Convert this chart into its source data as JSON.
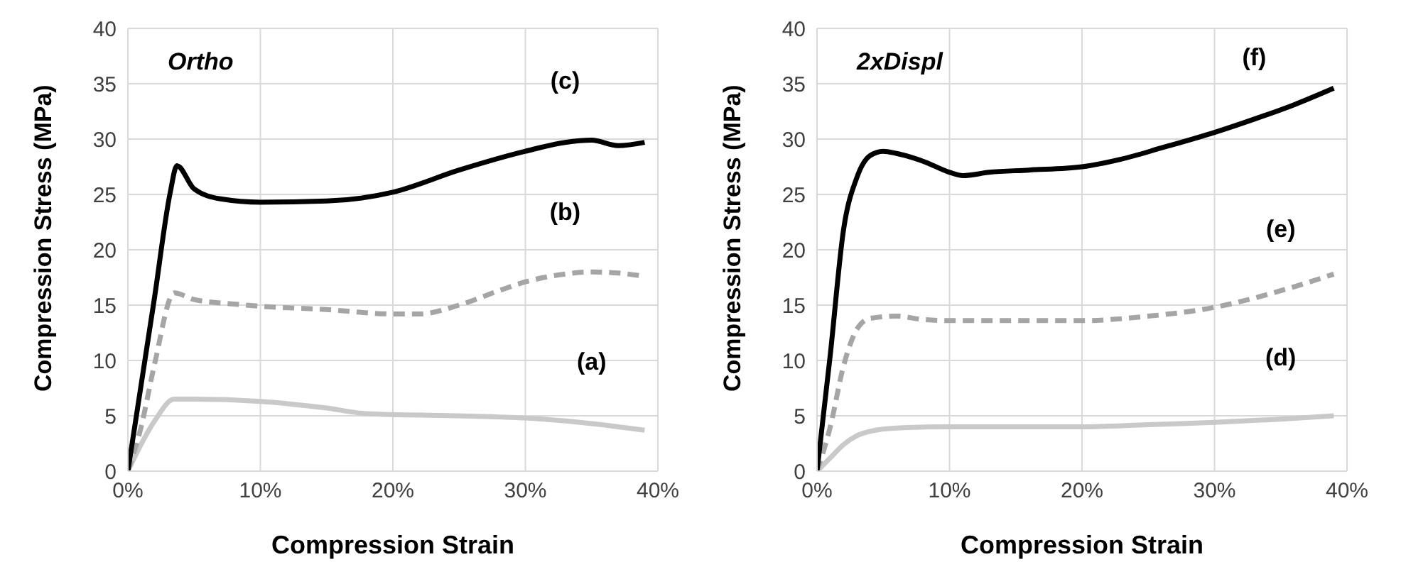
{
  "chart_data": [
    {
      "type": "line",
      "xlabel": "Compression Strain",
      "ylabel": "Compression Stress (MPa)",
      "xlim": [
        0,
        0.4
      ],
      "xticks": [
        {
          "value": 0,
          "label": "0%"
        },
        {
          "value": 0.1,
          "label": "10%"
        },
        {
          "value": 0.2,
          "label": "20%"
        },
        {
          "value": 0.3,
          "label": "30%"
        },
        {
          "value": 0.4,
          "label": "40%"
        }
      ],
      "ylim": [
        0,
        40
      ],
      "yticks": [
        0,
        5,
        10,
        15,
        20,
        25,
        30,
        35,
        40
      ],
      "grid": true,
      "marker": "none",
      "annotations": [
        "Ortho"
      ],
      "series": [
        {
          "name": "(a)",
          "color": "#c9c9c9",
          "line_style": "solid",
          "x": [
            0,
            0.02,
            0.035,
            0.05,
            0.1,
            0.15,
            0.18,
            0.25,
            0.3,
            0.35,
            0.39
          ],
          "values": [
            0,
            4.5,
            6.5,
            6.5,
            6.3,
            5.7,
            5.2,
            5.0,
            4.8,
            4.3,
            3.7
          ]
        },
        {
          "name": "(b)",
          "color": "#a5a5a5",
          "line_style": "dashed",
          "x": [
            0,
            0.01,
            0.02,
            0.035,
            0.05,
            0.08,
            0.1,
            0.15,
            0.2,
            0.22,
            0.25,
            0.28,
            0.3,
            0.33,
            0.35,
            0.37,
            0.39
          ],
          "values": [
            0,
            4,
            9.6,
            16.1,
            15.5,
            15.1,
            14.9,
            14.6,
            14.2,
            14.2,
            15.0,
            16.3,
            17.1,
            17.8,
            18.0,
            17.9,
            17.6
          ]
        },
        {
          "name": "(c)",
          "color": "#000000",
          "line_style": "solid",
          "x": [
            0,
            0.02,
            0.032,
            0.037,
            0.05,
            0.07,
            0.1,
            0.15,
            0.2,
            0.25,
            0.3,
            0.33,
            0.35,
            0.37,
            0.39
          ],
          "values": [
            0,
            15.6,
            25.2,
            27.6,
            25.5,
            24.6,
            24.3,
            24.4,
            25.2,
            27.2,
            28.9,
            29.7,
            29.9,
            29.4,
            29.7
          ]
        }
      ]
    },
    {
      "type": "line",
      "xlabel": "Compression Strain",
      "ylabel": "Compression Stress (MPa)",
      "xlim": [
        0,
        0.4
      ],
      "xticks": [
        {
          "value": 0,
          "label": "0%"
        },
        {
          "value": 0.1,
          "label": "10%"
        },
        {
          "value": 0.2,
          "label": "20%"
        },
        {
          "value": 0.3,
          "label": "30%"
        },
        {
          "value": 0.4,
          "label": "40%"
        }
      ],
      "ylim": [
        0,
        40
      ],
      "yticks": [
        0,
        5,
        10,
        15,
        20,
        25,
        30,
        35,
        40
      ],
      "grid": true,
      "marker": "none",
      "annotations": [
        "2xDispl"
      ],
      "series": [
        {
          "name": "(d)",
          "color": "#c9c9c9",
          "line_style": "solid",
          "x": [
            0,
            0.01,
            0.02,
            0.03,
            0.04,
            0.06,
            0.1,
            0.2,
            0.25,
            0.3,
            0.35,
            0.39
          ],
          "values": [
            0,
            1.2,
            2.4,
            3.2,
            3.6,
            3.9,
            4.0,
            4.0,
            4.2,
            4.4,
            4.7,
            5.0
          ]
        },
        {
          "name": "(e)",
          "color": "#a5a5a5",
          "line_style": "dashed",
          "x": [
            0,
            0.01,
            0.02,
            0.03,
            0.04,
            0.06,
            0.08,
            0.1,
            0.15,
            0.2,
            0.25,
            0.3,
            0.35,
            0.39
          ],
          "values": [
            0,
            4,
            9.5,
            12.8,
            13.8,
            14.0,
            13.7,
            13.6,
            13.6,
            13.6,
            14.0,
            14.8,
            16.3,
            17.8
          ]
        },
        {
          "name": "(f)",
          "color": "#000000",
          "line_style": "solid",
          "x": [
            0,
            0.01,
            0.02,
            0.03,
            0.04,
            0.05,
            0.06,
            0.08,
            0.1,
            0.11,
            0.13,
            0.16,
            0.2,
            0.23,
            0.26,
            0.3,
            0.33,
            0.36,
            0.39
          ],
          "values": [
            0,
            10.5,
            21.8,
            26.5,
            28.5,
            28.9,
            28.7,
            28.0,
            27.0,
            26.7,
            27.0,
            27.2,
            27.5,
            28.2,
            29.2,
            30.6,
            31.8,
            33.1,
            34.6
          ]
        }
      ]
    }
  ]
}
